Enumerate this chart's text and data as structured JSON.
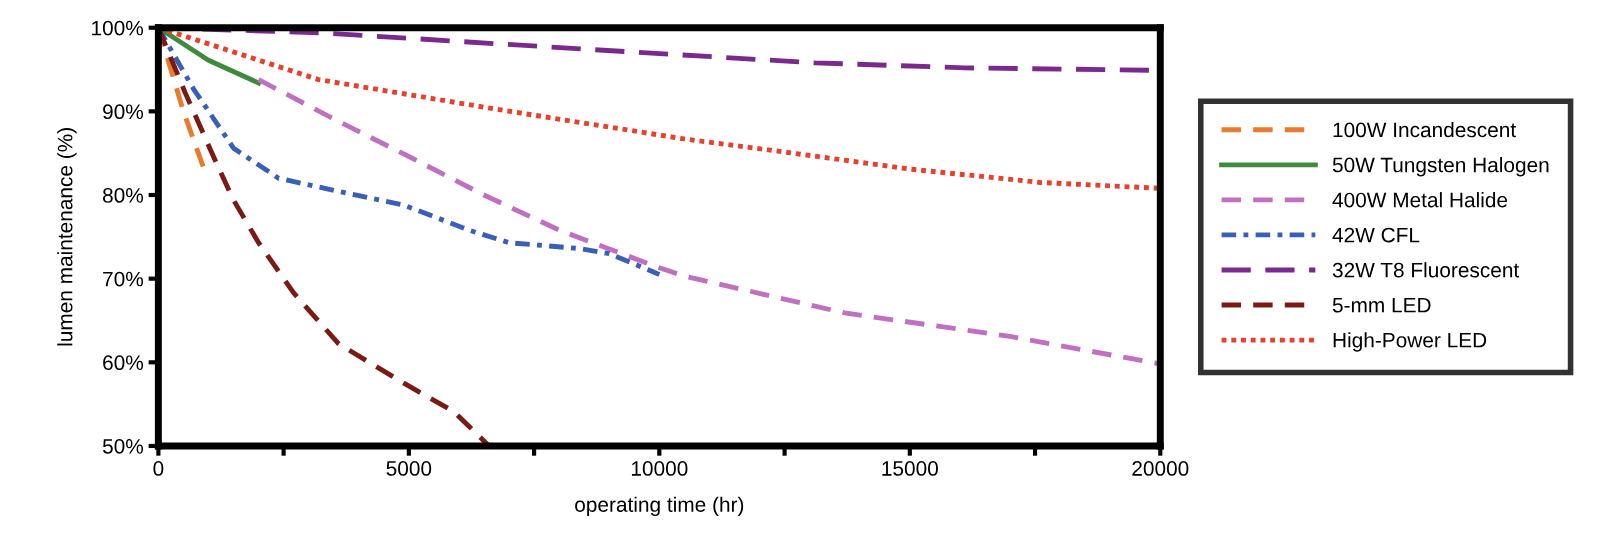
{
  "chart_data": {
    "type": "line",
    "xlabel": "operating time (hr)",
    "ylabel": "lumen maintenance (%)",
    "xlim": [
      0,
      20000
    ],
    "ylim": [
      50,
      100
    ],
    "xticks": [
      0,
      {
        "value": 2500,
        "label": null
      },
      5000,
      {
        "value": 7500,
        "label": null
      },
      10000,
      {
        "value": 12500,
        "label": null
      },
      15000,
      {
        "value": 17500,
        "label": null
      },
      20000
    ],
    "yticks": [
      {
        "value": 50,
        "label": "50%"
      },
      {
        "value": 60,
        "label": "60%"
      },
      {
        "value": 70,
        "label": "70%"
      },
      {
        "value": 80,
        "label": "80%"
      },
      {
        "value": 90,
        "label": "90%"
      },
      {
        "value": 100,
        "label": "100%"
      }
    ],
    "grid": false,
    "legend": "right",
    "marker": "none",
    "series": [
      {
        "name": "100W Incandescent",
        "color": "#e87b2e",
        "line_style": "dashed",
        "x": [
          0,
          250,
          500,
          900
        ],
        "values": [
          100,
          95,
          90,
          83.3
        ]
      },
      {
        "name": "50W Tungsten Halogen",
        "color": "#3f8a3f",
        "line_style": "solid",
        "x": [
          0,
          1000,
          2000
        ],
        "values": [
          100,
          96.1,
          93.4
        ]
      },
      {
        "name": "400W Metal Halide",
        "color": "#c070c0",
        "line_style": "dashed",
        "x": [
          2000,
          3500,
          5000,
          6500,
          8000,
          10000,
          10500,
          13700,
          17000,
          20000
        ],
        "values": [
          93.8,
          89.1,
          84.6,
          80.0,
          75.8,
          71.3,
          70.3,
          65.9,
          63.1,
          59.8
        ]
      },
      {
        "name": "42W CFL",
        "color": "#3a5fb8",
        "line_style": "dashdot",
        "x": [
          0,
          700,
          1500,
          2400,
          3700,
          4900,
          6200,
          7000,
          8400,
          9000,
          10000
        ],
        "values": [
          100,
          92.7,
          85.6,
          82.0,
          80.3,
          78.8,
          75.8,
          74.3,
          73.6,
          73.0,
          70.5
        ]
      },
      {
        "name": "32W T8 Fluorescent",
        "color": "#7a2a8c",
        "line_style": "longdash",
        "x": [
          0,
          3200,
          6700,
          10300,
          13100,
          16100,
          20000
        ],
        "values": [
          100,
          99.4,
          98.1,
          96.8,
          95.8,
          95.2,
          94.9
        ]
      },
      {
        "name": "5-mm LED",
        "color": "#7a1a14",
        "line_style": "dashed",
        "x": [
          0,
          530,
          1100,
          1500,
          2000,
          2700,
          3600,
          4900,
          5900,
          6600
        ],
        "values": [
          100,
          92.3,
          84.6,
          79.4,
          74.3,
          68.3,
          62.2,
          57.5,
          54.1,
          50
        ]
      },
      {
        "name": "High-Power LED",
        "color": "#e8402a",
        "line_style": "dotted",
        "x": [
          0,
          3200,
          6700,
          10500,
          12300,
          15000,
          17600,
          20000
        ],
        "values": [
          100,
          93.8,
          90.3,
          86.7,
          85.3,
          83.1,
          81.5,
          80.8
        ]
      }
    ]
  }
}
